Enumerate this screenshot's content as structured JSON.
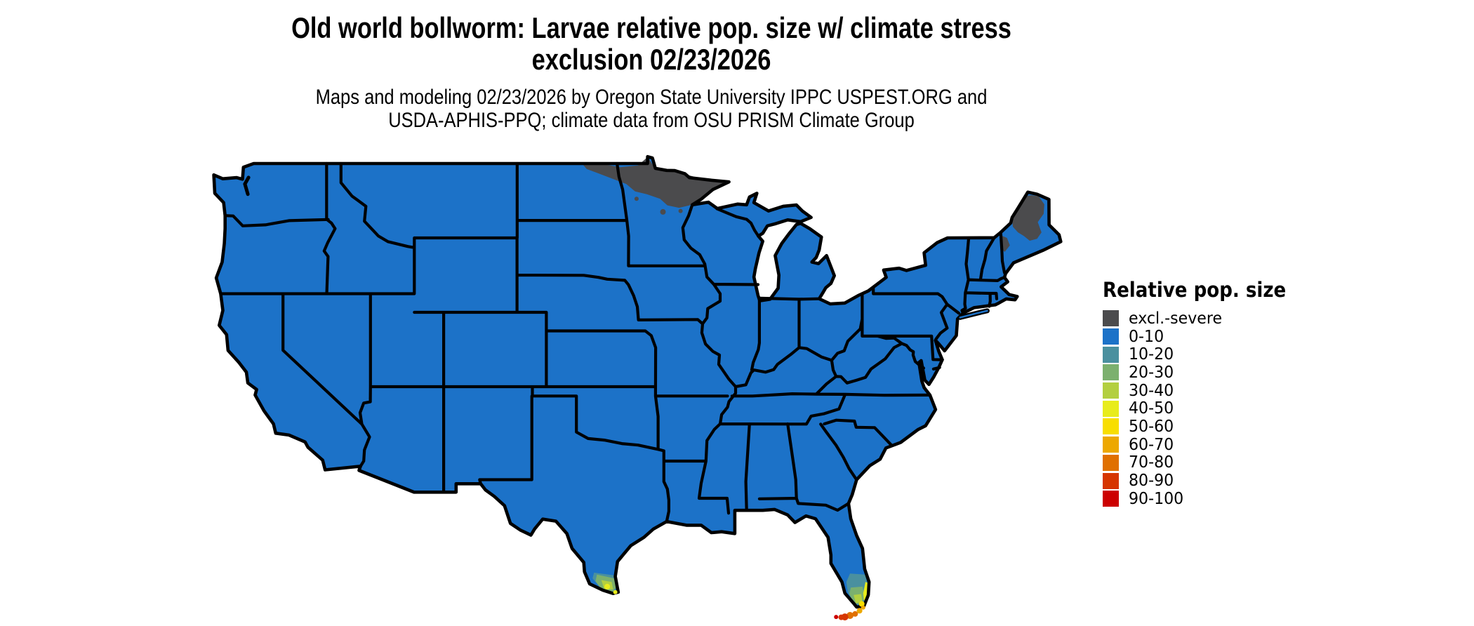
{
  "title": {
    "line1": "Old world bollworm: Larvae relative pop. size w/ climate stress",
    "line2": "exclusion 02/23/2026"
  },
  "subtitle": {
    "line1": "Maps and modeling 02/23/2026 by Oregon State University IPPC USPEST.ORG and",
    "line2": "USDA-APHIS-PPQ; climate data from OSU PRISM Climate Group"
  },
  "legend": {
    "title": "Relative pop. size",
    "items": [
      {
        "label": "excl.-severe",
        "color": "#4b4b4d"
      },
      {
        "label": "0-10",
        "color": "#1c72c8"
      },
      {
        "label": "10-20",
        "color": "#4a909f"
      },
      {
        "label": "20-30",
        "color": "#7cb06e"
      },
      {
        "label": "30-40",
        "color": "#b3cf40"
      },
      {
        "label": "40-50",
        "color": "#e8ec1c"
      },
      {
        "label": "50-60",
        "color": "#f8de00"
      },
      {
        "label": "60-70",
        "color": "#eda800"
      },
      {
        "label": "70-80",
        "color": "#e07000"
      },
      {
        "label": "80-90",
        "color": "#d63600"
      },
      {
        "label": "90-100",
        "color": "#cc0000"
      }
    ]
  },
  "map": {
    "background_color": "#ffffff",
    "border_color": "#000000",
    "land_category": "0-10",
    "excluded_category": "excl.-severe"
  }
}
